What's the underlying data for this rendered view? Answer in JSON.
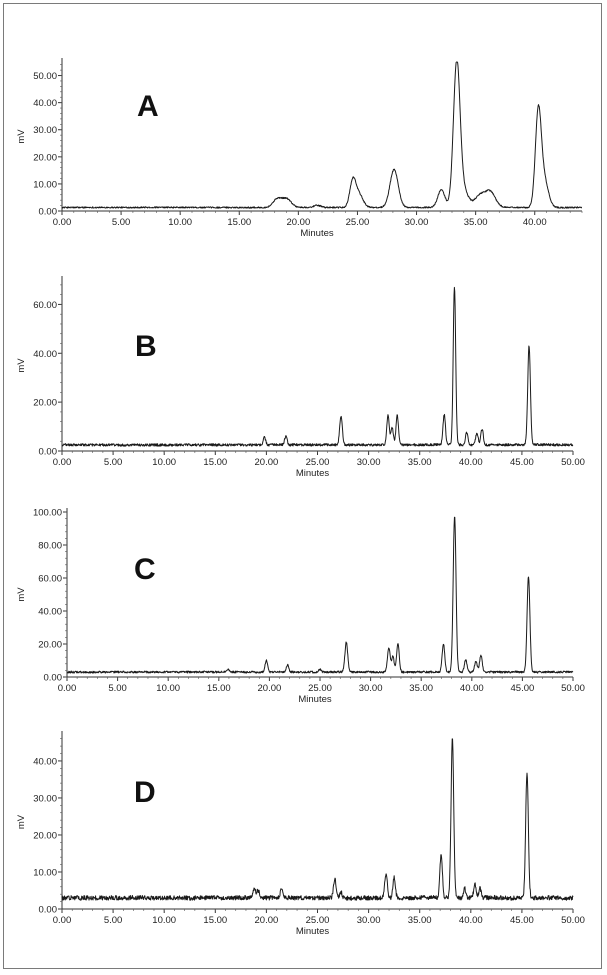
{
  "chart_data": [
    {
      "type": "line",
      "panel_label": "A",
      "xlabel": "Minutes",
      "ylabel": "mV",
      "xlim": [
        0,
        44
      ],
      "ylim": [
        0,
        55
      ],
      "xticks": [
        "0.00",
        "5.00",
        "10.00",
        "15.00",
        "20.00",
        "25.00",
        "30.00",
        "35.00",
        "40.00"
      ],
      "yticks": [
        "0.00",
        "10.00",
        "20.00",
        "30.00",
        "40.00",
        "50.00"
      ],
      "baseline": 1.3,
      "noise": 0.25,
      "peaks": [
        {
          "t": 18.2,
          "h": 3.0,
          "w": 0.35
        },
        {
          "t": 19.0,
          "h": 3.2,
          "w": 0.4
        },
        {
          "t": 21.6,
          "h": 0.8,
          "w": 0.3
        },
        {
          "t": 24.6,
          "h": 9.2,
          "w": 0.25
        },
        {
          "t": 25.1,
          "h": 5.0,
          "w": 0.35
        },
        {
          "t": 28.1,
          "h": 14.0,
          "w": 0.35
        },
        {
          "t": 32.1,
          "h": 6.5,
          "w": 0.3
        },
        {
          "t": 33.4,
          "h": 53.0,
          "w": 0.28
        },
        {
          "t": 34.0,
          "h": 6.0,
          "w": 0.4
        },
        {
          "t": 35.3,
          "h": 4.0,
          "w": 0.4
        },
        {
          "t": 36.2,
          "h": 6.0,
          "w": 0.45
        },
        {
          "t": 40.3,
          "h": 34.0,
          "w": 0.25
        },
        {
          "t": 40.8,
          "h": 10.0,
          "w": 0.35
        }
      ]
    },
    {
      "type": "line",
      "panel_label": "B",
      "xlabel": "Minutes",
      "ylabel": "mV",
      "xlim": [
        0,
        50
      ],
      "ylim": [
        0,
        70
      ],
      "xticks": [
        "0.00",
        "5.00",
        "10.00",
        "15.00",
        "20.00",
        "25.00",
        "30.00",
        "35.00",
        "40.00",
        "45.00",
        "50.00"
      ],
      "yticks": [
        "0.00",
        "20.00",
        "40.00",
        "60.00"
      ],
      "baseline": 2.5,
      "noise": 0.5,
      "peaks": [
        {
          "t": 19.8,
          "h": 3.0,
          "w": 0.12
        },
        {
          "t": 21.9,
          "h": 3.5,
          "w": 0.12
        },
        {
          "t": 27.3,
          "h": 12.0,
          "w": 0.13
        },
        {
          "t": 31.9,
          "h": 12.5,
          "w": 0.12
        },
        {
          "t": 32.3,
          "h": 7.0,
          "w": 0.12
        },
        {
          "t": 32.8,
          "h": 12.0,
          "w": 0.12
        },
        {
          "t": 37.4,
          "h": 12.5,
          "w": 0.12
        },
        {
          "t": 38.4,
          "h": 65.0,
          "w": 0.12
        },
        {
          "t": 39.6,
          "h": 5.0,
          "w": 0.12
        },
        {
          "t": 40.6,
          "h": 5.0,
          "w": 0.12
        },
        {
          "t": 41.1,
          "h": 6.5,
          "w": 0.12
        },
        {
          "t": 45.7,
          "h": 40.5,
          "w": 0.13
        }
      ]
    },
    {
      "type": "line",
      "panel_label": "C",
      "xlabel": "Minutes",
      "ylabel": "mV",
      "xlim": [
        0,
        50
      ],
      "ylim": [
        0,
        100
      ],
      "xticks": [
        "0.00",
        "5.00",
        "10.00",
        "15.00",
        "20.00",
        "25.00",
        "30.00",
        "35.00",
        "40.00",
        "45.00",
        "50.00"
      ],
      "yticks": [
        "0.00",
        "20.00",
        "40.00",
        "60.00",
        "80.00",
        "100.00"
      ],
      "baseline": 3.0,
      "noise": 0.6,
      "peaks": [
        {
          "t": 15.9,
          "h": 1.5,
          "w": 0.12
        },
        {
          "t": 19.7,
          "h": 7.0,
          "w": 0.13
        },
        {
          "t": 21.8,
          "h": 4.5,
          "w": 0.12
        },
        {
          "t": 25.0,
          "h": 1.5,
          "w": 0.12
        },
        {
          "t": 27.6,
          "h": 18.0,
          "w": 0.14
        },
        {
          "t": 31.8,
          "h": 15.0,
          "w": 0.13
        },
        {
          "t": 32.2,
          "h": 10.0,
          "w": 0.12
        },
        {
          "t": 32.7,
          "h": 17.0,
          "w": 0.13
        },
        {
          "t": 37.2,
          "h": 17.0,
          "w": 0.13
        },
        {
          "t": 38.3,
          "h": 95.0,
          "w": 0.14
        },
        {
          "t": 39.4,
          "h": 7.5,
          "w": 0.13
        },
        {
          "t": 40.4,
          "h": 6.5,
          "w": 0.13
        },
        {
          "t": 40.9,
          "h": 10.0,
          "w": 0.13
        },
        {
          "t": 45.6,
          "h": 58.0,
          "w": 0.14
        }
      ]
    },
    {
      "type": "line",
      "panel_label": "D",
      "xlabel": "Minutes",
      "ylabel": "mV",
      "xlim": [
        0,
        50
      ],
      "ylim": [
        0,
        47
      ],
      "xticks": [
        "0.00",
        "5.00",
        "10.00",
        "15.00",
        "20.00",
        "25.00",
        "30.00",
        "35.00",
        "40.00",
        "45.00",
        "50.00"
      ],
      "yticks": [
        "0.00",
        "10.00",
        "20.00",
        "30.00",
        "40.00"
      ],
      "baseline": 3.0,
      "noise": 0.6,
      "peaks": [
        {
          "t": 18.8,
          "h": 2.0,
          "w": 0.15
        },
        {
          "t": 19.2,
          "h": 1.8,
          "w": 0.15
        },
        {
          "t": 21.5,
          "h": 2.5,
          "w": 0.12
        },
        {
          "t": 26.7,
          "h": 5.0,
          "w": 0.13
        },
        {
          "t": 27.3,
          "h": 1.5,
          "w": 0.12
        },
        {
          "t": 31.7,
          "h": 6.5,
          "w": 0.13
        },
        {
          "t": 32.5,
          "h": 5.5,
          "w": 0.12
        },
        {
          "t": 37.1,
          "h": 12.0,
          "w": 0.12
        },
        {
          "t": 38.2,
          "h": 43.0,
          "w": 0.13
        },
        {
          "t": 39.4,
          "h": 2.5,
          "w": 0.12
        },
        {
          "t": 40.4,
          "h": 3.5,
          "w": 0.12
        },
        {
          "t": 40.9,
          "h": 2.5,
          "w": 0.12
        },
        {
          "t": 45.5,
          "h": 34.0,
          "w": 0.13
        }
      ]
    }
  ]
}
